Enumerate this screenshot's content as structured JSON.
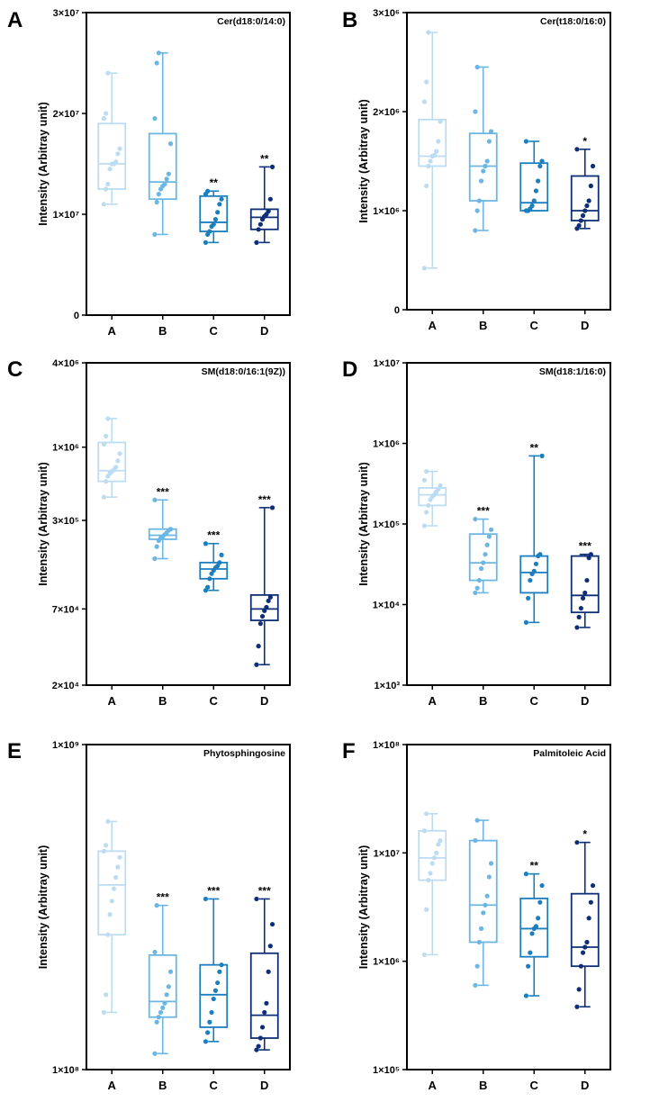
{
  "chart_data": [
    {
      "panel": "A",
      "type": "box",
      "title": "Cer(d18:0/14:0)",
      "ylabel": "Intensity (Arbitray unit)",
      "yscale": "linear",
      "ylim": [
        0,
        30000000
      ],
      "yticks": [
        {
          "v": 0,
          "label": "0"
        },
        {
          "v": 10000000,
          "label": "1×10⁷"
        },
        {
          "v": 20000000,
          "label": "2×10⁷"
        },
        {
          "v": 30000000,
          "label": "3×10⁷"
        }
      ],
      "categories": [
        "A",
        "B",
        "C",
        "D"
      ],
      "boxes": [
        {
          "min": 11000000,
          "q1": 12500000,
          "median": 15000000,
          "q3": 19000000,
          "max": 24000000,
          "sig": "",
          "points": [
            11000000,
            12500000,
            13000000,
            14500000,
            15000000,
            15000000,
            15200000,
            16000000,
            16500000,
            19500000,
            20000000,
            24000000
          ]
        },
        {
          "min": 8000000,
          "q1": 11500000,
          "median": 13200000,
          "q3": 18000000,
          "max": 26000000,
          "sig": "",
          "points": [
            8000000,
            11200000,
            12000000,
            12500000,
            12800000,
            13000000,
            13500000,
            14000000,
            17000000,
            19500000,
            25000000,
            26000000
          ]
        },
        {
          "min": 7200000,
          "q1": 8300000,
          "median": 9200000,
          "q3": 11800000,
          "max": 12300000,
          "sig": "**",
          "points": [
            7200000,
            8000000,
            8300000,
            8800000,
            9000000,
            9500000,
            10200000,
            11000000,
            11500000,
            12000000,
            12300000
          ]
        },
        {
          "min": 7200000,
          "q1": 8500000,
          "median": 9700000,
          "q3": 10500000,
          "max": 14700000,
          "sig": "**",
          "points": [
            7200000,
            8500000,
            9000000,
            9500000,
            9800000,
            10000000,
            10300000,
            11500000,
            14700000
          ]
        }
      ]
    },
    {
      "panel": "B",
      "type": "box",
      "title": "Cer(t18:0/16:0)",
      "ylabel": "Intensity (Arbitray unit)",
      "yscale": "linear",
      "ylim": [
        0,
        3000000
      ],
      "yticks": [
        {
          "v": 0,
          "label": "0"
        },
        {
          "v": 1000000,
          "label": "1×10⁶"
        },
        {
          "v": 2000000,
          "label": "2×10⁶"
        },
        {
          "v": 3000000,
          "label": "3×10⁶"
        }
      ],
      "categories": [
        "A",
        "B",
        "C",
        "D"
      ],
      "boxes": [
        {
          "min": 420000,
          "q1": 1450000,
          "median": 1550000,
          "q3": 1920000,
          "max": 2800000,
          "sig": "",
          "points": [
            420000,
            1250000,
            1450000,
            1500000,
            1550000,
            1560000,
            1600000,
            1700000,
            1900000,
            2100000,
            2300000,
            2800000
          ]
        },
        {
          "min": 800000,
          "q1": 1100000,
          "median": 1450000,
          "q3": 1780000,
          "max": 2450000,
          "sig": "",
          "points": [
            800000,
            1000000,
            1100000,
            1300000,
            1400000,
            1450000,
            1500000,
            1700000,
            1800000,
            2000000,
            2450000
          ]
        },
        {
          "min": 1000000,
          "q1": 1000000,
          "median": 1080000,
          "q3": 1480000,
          "max": 1700000,
          "sig": "",
          "points": [
            1000000,
            1000000,
            1020000,
            1050000,
            1100000,
            1200000,
            1300000,
            1450000,
            1500000,
            1700000
          ]
        },
        {
          "min": 820000,
          "q1": 900000,
          "median": 1000000,
          "q3": 1350000,
          "max": 1620000,
          "sig": "*",
          "points": [
            820000,
            850000,
            900000,
            950000,
            1000000,
            1050000,
            1100000,
            1250000,
            1450000,
            1620000
          ]
        }
      ]
    },
    {
      "panel": "C",
      "type": "box",
      "title": "SM(d18:0/16:1(9Z))",
      "ylabel": "Intensity (Arbitray unit)",
      "yscale": "log",
      "ylim": [
        20000,
        4000000
      ],
      "yticks": [
        {
          "v": 20000,
          "label": "2×10⁴"
        },
        {
          "v": 70000,
          "label": "7×10⁴"
        },
        {
          "v": 300000,
          "label": "3×10⁵"
        },
        {
          "v": 1000000,
          "label": "1×10⁶"
        },
        {
          "v": 4000000,
          "label": "4×10⁶"
        }
      ],
      "categories": [
        "A",
        "B",
        "C",
        "D"
      ],
      "boxes": [
        {
          "min": 440000,
          "q1": 570000,
          "median": 680000,
          "q3": 1080000,
          "max": 1600000,
          "sig": "",
          "points": [
            440000,
            570000,
            620000,
            650000,
            670000,
            690000,
            720000,
            800000,
            900000,
            1050000,
            1200000,
            1600000
          ]
        },
        {
          "min": 160000,
          "q1": 220000,
          "median": 235000,
          "q3": 260000,
          "max": 420000,
          "sig": "***",
          "points": [
            160000,
            195000,
            215000,
            225000,
            230000,
            238000,
            245000,
            255000,
            260000,
            420000
          ]
        },
        {
          "min": 95000,
          "q1": 115000,
          "median": 135000,
          "q3": 150000,
          "max": 205000,
          "sig": "***",
          "points": [
            95000,
            100000,
            115000,
            125000,
            132000,
            138000,
            142000,
            150000,
            170000,
            205000
          ]
        },
        {
          "min": 28000,
          "q1": 58000,
          "median": 70000,
          "q3": 88000,
          "max": 370000,
          "sig": "***",
          "points": [
            28000,
            38000,
            55000,
            62000,
            68000,
            72000,
            80000,
            85000,
            370000
          ]
        }
      ]
    },
    {
      "panel": "D",
      "type": "box",
      "title": "SM(d18:1/16:0)",
      "ylabel": "Intensity (Arbitray unit)",
      "yscale": "log",
      "ylim": [
        1000,
        10000000
      ],
      "yticks": [
        {
          "v": 1000,
          "label": "1×10³"
        },
        {
          "v": 10000,
          "label": "1×10⁴"
        },
        {
          "v": 100000,
          "label": "1×10⁵"
        },
        {
          "v": 1000000,
          "label": "1×10⁶"
        },
        {
          "v": 10000000,
          "label": "1×10⁷"
        }
      ],
      "categories": [
        "A",
        "B",
        "C",
        "D"
      ],
      "boxes": [
        {
          "min": 95000,
          "q1": 170000,
          "median": 230000,
          "q3": 280000,
          "max": 450000,
          "sig": "",
          "points": [
            95000,
            140000,
            170000,
            200000,
            220000,
            230000,
            250000,
            270000,
            300000,
            350000,
            450000
          ]
        },
        {
          "min": 14000,
          "q1": 20000,
          "median": 33000,
          "q3": 75000,
          "max": 115000,
          "sig": "***",
          "points": [
            14000,
            16000,
            20000,
            28000,
            33000,
            42000,
            55000,
            70000,
            85000,
            115000
          ]
        },
        {
          "min": 6000,
          "q1": 14000,
          "median": 25000,
          "q3": 40000,
          "max": 700000,
          "sig": "**",
          "points": [
            6000,
            12000,
            20000,
            24000,
            26000,
            32000,
            40000,
            42000,
            700000
          ]
        },
        {
          "min": 5200,
          "q1": 8000,
          "median": 13000,
          "q3": 40000,
          "max": 42000,
          "sig": "***",
          "points": [
            5200,
            7000,
            9000,
            12000,
            14000,
            20000,
            38000,
            42000
          ]
        }
      ]
    },
    {
      "panel": "E",
      "type": "box",
      "title": "Phytosphingosine",
      "ylabel": "Intensity (Arbitray unit)",
      "yscale": "log",
      "ylim": [
        100000000,
        1000000000
      ],
      "yticks": [
        {
          "v": 100000000,
          "label": "1×10⁸"
        },
        {
          "v": 1000000000,
          "label": "1×10⁹"
        }
      ],
      "categories": [
        "A",
        "B",
        "C",
        "D"
      ],
      "boxes": [
        {
          "min": 150000000,
          "q1": 260000000,
          "median": 370000000,
          "q3": 470000000,
          "max": 580000000,
          "sig": "",
          "points": [
            150000000,
            170000000,
            260000000,
            300000000,
            330000000,
            360000000,
            390000000,
            420000000,
            450000000,
            470000000,
            490000000,
            580000000
          ]
        },
        {
          "min": 112000000,
          "q1": 145000000,
          "median": 162000000,
          "q3": 225000000,
          "max": 320000000,
          "sig": "***",
          "points": [
            112000000,
            140000000,
            145000000,
            150000000,
            155000000,
            160000000,
            170000000,
            180000000,
            200000000,
            230000000,
            320000000
          ]
        },
        {
          "min": 122000000,
          "q1": 135000000,
          "median": 170000000,
          "q3": 210000000,
          "max": 335000000,
          "sig": "***",
          "points": [
            122000000,
            130000000,
            140000000,
            150000000,
            165000000,
            175000000,
            185000000,
            200000000,
            210000000,
            335000000
          ]
        },
        {
          "min": 115000000,
          "q1": 125000000,
          "median": 147000000,
          "q3": 228000000,
          "max": 335000000,
          "sig": "***",
          "points": [
            115000000,
            118000000,
            125000000,
            135000000,
            150000000,
            160000000,
            200000000,
            240000000,
            280000000,
            335000000
          ]
        }
      ]
    },
    {
      "panel": "F",
      "type": "box",
      "title": "Palmitoleic Acid",
      "ylabel": "Intensity (Arbitray unit)",
      "yscale": "log",
      "ylim": [
        100000,
        100000000
      ],
      "yticks": [
        {
          "v": 100000,
          "label": "1×10⁵"
        },
        {
          "v": 1000000,
          "label": "1×10⁶"
        },
        {
          "v": 10000000,
          "label": "1×10⁷"
        },
        {
          "v": 100000000,
          "label": "1×10⁸"
        }
      ],
      "categories": [
        "A",
        "B",
        "C",
        "D"
      ],
      "boxes": [
        {
          "min": 1150000,
          "q1": 5600000,
          "median": 9000000,
          "q3": 16000000,
          "max": 23000000,
          "sig": "",
          "points": [
            1150000,
            3000000,
            5600000,
            6500000,
            8000000,
            9000000,
            10000000,
            12000000,
            13000000,
            16000000,
            23000000
          ]
        },
        {
          "min": 600000,
          "q1": 1500000,
          "median": 3300000,
          "q3": 13000000,
          "max": 20000000,
          "sig": "",
          "points": [
            600000,
            900000,
            1500000,
            2000000,
            2800000,
            3300000,
            4000000,
            6000000,
            8000000,
            13000000,
            20000000
          ]
        },
        {
          "min": 480000,
          "q1": 1100000,
          "median": 2000000,
          "q3": 3800000,
          "max": 6400000,
          "sig": "**",
          "points": [
            480000,
            900000,
            1200000,
            1800000,
            2000000,
            2100000,
            2500000,
            3500000,
            5000000,
            6400000
          ]
        },
        {
          "min": 380000,
          "q1": 900000,
          "median": 1350000,
          "q3": 4200000,
          "max": 12500000,
          "sig": "*",
          "points": [
            380000,
            550000,
            900000,
            1200000,
            1350000,
            1500000,
            2500000,
            3500000,
            5000000,
            12500000
          ]
        }
      ]
    }
  ],
  "colors": {
    "groups": [
      "#bcdcf2",
      "#6cb6e3",
      "#1b7fbf",
      "#0e2f78"
    ],
    "axis": "#000000"
  }
}
